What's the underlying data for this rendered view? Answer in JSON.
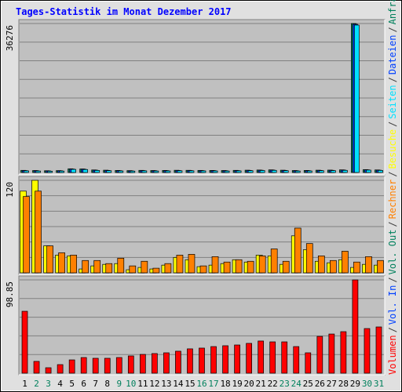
{
  "title": "Tages-Statistik im Monat Dezember 2017",
  "legend_separator": "/",
  "chart_data": [
    {
      "type": "bar",
      "ylim": [
        0,
        36276
      ],
      "yticks": [
        36276
      ],
      "series": [
        {
          "name": "Anfragen",
          "color": "#00805c",
          "values": [
            520,
            480,
            430,
            460,
            900,
            860,
            620,
            560,
            500,
            460,
            520,
            480,
            500,
            540,
            530,
            510,
            500,
            480,
            520,
            560,
            600,
            640,
            560,
            480,
            500,
            560,
            580,
            640,
            36276,
            700,
            620
          ]
        },
        {
          "name": "Dateien",
          "color": "#0040ff",
          "values": [
            470,
            430,
            390,
            420,
            840,
            800,
            570,
            510,
            450,
            410,
            470,
            430,
            450,
            490,
            480,
            460,
            450,
            430,
            470,
            510,
            550,
            590,
            510,
            430,
            450,
            510,
            530,
            590,
            36100,
            650,
            570
          ]
        },
        {
          "name": "Seiten",
          "color": "#00e0ff",
          "values": [
            400,
            360,
            320,
            350,
            760,
            720,
            500,
            440,
            380,
            340,
            400,
            360,
            380,
            420,
            410,
            390,
            380,
            360,
            400,
            440,
            480,
            520,
            440,
            360,
            380,
            440,
            460,
            520,
            35900,
            580,
            500
          ]
        }
      ]
    },
    {
      "type": "bar",
      "ylim": [
        0,
        120
      ],
      "yticks": [
        120
      ],
      "series": [
        {
          "name": "Besuche",
          "color": "#ffff00",
          "values": [
            106,
            120,
            35,
            23,
            22,
            5,
            9,
            11,
            12,
            4,
            7,
            5,
            10,
            20,
            17,
            8,
            10,
            12,
            17,
            14,
            23,
            22,
            11,
            48,
            30,
            15,
            13,
            17,
            7,
            11,
            10
          ]
        },
        {
          "name": "Rechner",
          "color": "#ff8000",
          "values": [
            99,
            106,
            35,
            26,
            23,
            16,
            16,
            12,
            19,
            9,
            15,
            6,
            12,
            23,
            24,
            9,
            21,
            14,
            17,
            15,
            22,
            31,
            15,
            58,
            38,
            22,
            16,
            28,
            14,
            21,
            16
          ]
        }
      ]
    },
    {
      "type": "bar",
      "ylim": [
        0,
        98.85
      ],
      "yticks": [
        98.85
      ],
      "categories": [
        "1",
        "2",
        "3",
        "4",
        "5",
        "6",
        "7",
        "8",
        "9",
        "10",
        "11",
        "12",
        "13",
        "14",
        "15",
        "16",
        "17",
        "18",
        "19",
        "20",
        "21",
        "22",
        "23",
        "24",
        "25",
        "26",
        "27",
        "28",
        "29",
        "30",
        "31"
      ],
      "category_colors": [
        "#000000",
        "#00805c",
        "#00805c",
        "#000000",
        "#000000",
        "#000000",
        "#000000",
        "#000000",
        "#00805c",
        "#00805c",
        "#000000",
        "#000000",
        "#000000",
        "#000000",
        "#000000",
        "#00805c",
        "#00805c",
        "#000000",
        "#000000",
        "#000000",
        "#000000",
        "#000000",
        "#00805c",
        "#00805c",
        "#000000",
        "#000000",
        "#000000",
        "#000000",
        "#000000",
        "#00805c",
        "#00805c"
      ],
      "series": [
        {
          "name": "Vol. Out",
          "color": "#00805c"
        },
        {
          "name": "Vol. In",
          "color": "#0040ff"
        },
        {
          "name": "Volumen",
          "color": "#ff0000",
          "values": [
            65.6,
            12.5,
            5.8,
            9.1,
            14.1,
            16.6,
            15.8,
            15.8,
            16.6,
            18.3,
            19.9,
            20.8,
            21.6,
            23.3,
            25.8,
            26.6,
            28.2,
            29.1,
            29.9,
            31.6,
            34.1,
            33.2,
            33.2,
            28.2,
            21.6,
            39.0,
            41.5,
            44.0,
            98.85,
            47.3,
            49.0
          ]
        }
      ]
    }
  ]
}
